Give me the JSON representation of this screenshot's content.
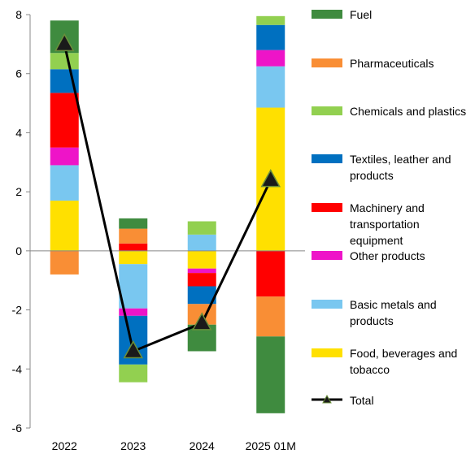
{
  "chart_data": {
    "type": "bar",
    "stacked": true,
    "categories": [
      "2022",
      "2023",
      "2024",
      "2025 01M"
    ],
    "ylim": [
      -6,
      8
    ],
    "yticks": [
      -6,
      -4,
      -2,
      0,
      2,
      4,
      6,
      8
    ],
    "grid": false,
    "legend": "right",
    "series": [
      {
        "name": "Food, beverages and tobacco",
        "color": "#ffe000",
        "values": [
          1.7,
          -0.45,
          -0.6,
          4.85
        ]
      },
      {
        "name": "Basic metals and products",
        "color": "#79c7f0",
        "values": [
          1.2,
          -1.5,
          0.55,
          1.4
        ]
      },
      {
        "name": "Other products",
        "color": "#ee14c8",
        "values": [
          0.6,
          -0.25,
          -0.15,
          0.55
        ]
      },
      {
        "name": "Machinery and transportation equipment",
        "color": "#ff0000",
        "values": [
          1.85,
          0.25,
          -0.45,
          -1.55
        ]
      },
      {
        "name": "Textiles, leather and products",
        "color": "#0070c0",
        "values": [
          0.8,
          -1.65,
          -0.6,
          0.85
        ]
      },
      {
        "name": "Chemicals and plastics",
        "color": "#92d050",
        "values": [
          0.55,
          -0.6,
          0.45,
          0.3
        ]
      },
      {
        "name": "Pharmaceuticals",
        "color": "#f98e35",
        "values": [
          -0.8,
          0.5,
          -0.7,
          -1.35
        ]
      },
      {
        "name": "Fuel",
        "color": "#3f8b3f",
        "values": [
          1.1,
          0.35,
          -0.9,
          -2.6
        ]
      }
    ],
    "total": {
      "name": "Total",
      "type": "line",
      "color": "#000000",
      "marker_color": "#1a1a1a",
      "values": [
        7.0,
        -3.4,
        -2.45,
        2.4
      ]
    }
  }
}
